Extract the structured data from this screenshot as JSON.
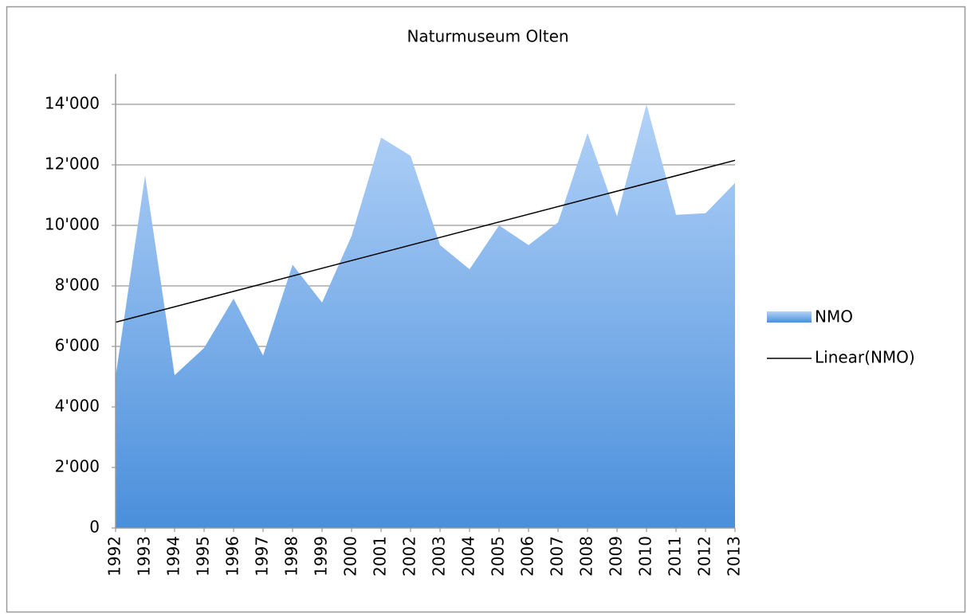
{
  "chart_data": {
    "type": "area",
    "title": "Naturmuseum Olten",
    "categories": [
      "1992",
      "1993",
      "1994",
      "1995",
      "1996",
      "1997",
      "1998",
      "1999",
      "2000",
      "2001",
      "2002",
      "2003",
      "2004",
      "2005",
      "2006",
      "2007",
      "2008",
      "2009",
      "2010",
      "2011",
      "2012",
      "2013"
    ],
    "series": [
      {
        "name": "NMO",
        "color": "#5a9ae0",
        "values": [
          5000,
          11650,
          5050,
          5950,
          7580,
          5700,
          8700,
          7450,
          9650,
          12900,
          12300,
          9350,
          8550,
          10000,
          9350,
          10100,
          13050,
          10300,
          14000,
          10350,
          10400,
          11400
        ]
      }
    ],
    "trendline": {
      "name": "Linear(NMO)",
      "color": "#000000",
      "values": [
        6800,
        12150
      ]
    },
    "ylim": [
      0,
      15000
    ],
    "yticks": [
      0,
      {
        "value": 2000,
        "label": "2'000"
      },
      {
        "value": 4000,
        "label": "4'000"
      },
      {
        "value": 6000,
        "label": "6'000"
      },
      {
        "value": 8000,
        "label": "8'000"
      },
      {
        "value": 10000,
        "label": "10'000"
      },
      {
        "value": 12000,
        "label": "12'000"
      },
      {
        "value": 14000,
        "label": "14'000"
      }
    ],
    "grid": true,
    "legend": "right"
  }
}
